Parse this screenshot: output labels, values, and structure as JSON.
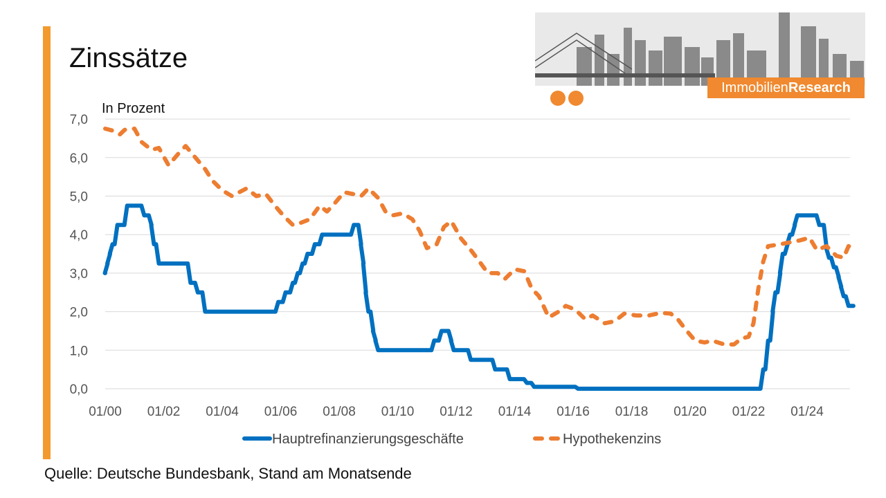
{
  "title": "Zinssätze",
  "unit_label": "In Prozent",
  "source": "Quelle: Deutsche Bundesbank, Stand am Monatsende",
  "brand": {
    "light": "Immobilien",
    "bold": "Research",
    "color": "#f0892f"
  },
  "accent_color": "#f39a2f",
  "chart_data": {
    "type": "line",
    "ylim": [
      0,
      7
    ],
    "yticks": [
      "0,0",
      "1,0",
      "2,0",
      "3,0",
      "4,0",
      "5,0",
      "6,0",
      "7,0"
    ],
    "xticks": [
      "01/00",
      "01/02",
      "01/04",
      "01/06",
      "01/08",
      "01/10",
      "01/12",
      "01/14",
      "01/16",
      "01/18",
      "01/20",
      "01/22",
      "01/24"
    ],
    "grid": true,
    "legend_position": "bottom",
    "series": [
      {
        "name": "Hauptrefinanzierungsgeschäfte",
        "color": "#0070c0",
        "style": "solid",
        "step": true,
        "points": [
          [
            "2000-01",
            3.0
          ],
          [
            "2000-02",
            3.25
          ],
          [
            "2000-03",
            3.5
          ],
          [
            "2000-04",
            3.75
          ],
          [
            "2000-06",
            4.25
          ],
          [
            "2000-10",
            4.75
          ],
          [
            "2001-05",
            4.5
          ],
          [
            "2001-08",
            4.25
          ],
          [
            "2001-09",
            3.75
          ],
          [
            "2001-11",
            3.25
          ],
          [
            "2002-12",
            2.75
          ],
          [
            "2003-03",
            2.5
          ],
          [
            "2003-06",
            2.0
          ],
          [
            "2005-12",
            2.25
          ],
          [
            "2006-03",
            2.5
          ],
          [
            "2006-06",
            2.75
          ],
          [
            "2006-08",
            3.0
          ],
          [
            "2006-10",
            3.25
          ],
          [
            "2006-12",
            3.5
          ],
          [
            "2007-03",
            3.75
          ],
          [
            "2007-06",
            4.0
          ],
          [
            "2008-07",
            4.25
          ],
          [
            "2008-10",
            3.75
          ],
          [
            "2008-11",
            3.25
          ],
          [
            "2008-12",
            2.5
          ],
          [
            "2009-01",
            2.0
          ],
          [
            "2009-03",
            1.5
          ],
          [
            "2009-04",
            1.25
          ],
          [
            "2009-05",
            1.0
          ],
          [
            "2011-04",
            1.25
          ],
          [
            "2011-07",
            1.5
          ],
          [
            "2011-11",
            1.25
          ],
          [
            "2011-12",
            1.0
          ],
          [
            "2012-07",
            0.75
          ],
          [
            "2013-05",
            0.5
          ],
          [
            "2013-11",
            0.25
          ],
          [
            "2014-06",
            0.15
          ],
          [
            "2014-09",
            0.05
          ],
          [
            "2016-03",
            0.0
          ],
          [
            "2022-07",
            0.5
          ],
          [
            "2022-09",
            1.25
          ],
          [
            "2022-11",
            2.0
          ],
          [
            "2022-12",
            2.5
          ],
          [
            "2023-02",
            3.0
          ],
          [
            "2023-03",
            3.5
          ],
          [
            "2023-05",
            3.75
          ],
          [
            "2023-06",
            4.0
          ],
          [
            "2023-08",
            4.25
          ],
          [
            "2023-09",
            4.5
          ],
          [
            "2024-06",
            4.25
          ],
          [
            "2024-09",
            3.65
          ],
          [
            "2024-10",
            3.4
          ],
          [
            "2024-12",
            3.15
          ],
          [
            "2025-02",
            2.9
          ],
          [
            "2025-03",
            2.65
          ],
          [
            "2025-04",
            2.4
          ],
          [
            "2025-06",
            2.15
          ],
          [
            "2025-08",
            2.15
          ]
        ]
      },
      {
        "name": "Hypothekenzins",
        "color": "#ed7d31",
        "style": "dashed",
        "step": false,
        "points": [
          [
            "2000-01",
            6.75
          ],
          [
            "2000-04",
            6.7
          ],
          [
            "2000-07",
            6.6
          ],
          [
            "2000-09",
            6.72
          ],
          [
            "2001-01",
            6.75
          ],
          [
            "2001-04",
            6.4
          ],
          [
            "2001-08",
            6.2
          ],
          [
            "2001-11",
            6.25
          ],
          [
            "2002-03",
            5.8
          ],
          [
            "2002-07",
            6.1
          ],
          [
            "2002-10",
            6.3
          ],
          [
            "2003-02",
            6.0
          ],
          [
            "2003-06",
            5.7
          ],
          [
            "2003-09",
            5.4
          ],
          [
            "2004-01",
            5.15
          ],
          [
            "2004-05",
            5.0
          ],
          [
            "2004-08",
            5.1
          ],
          [
            "2004-11",
            5.2
          ],
          [
            "2005-03",
            5.0
          ],
          [
            "2005-07",
            5.05
          ],
          [
            "2005-10",
            4.8
          ],
          [
            "2006-02",
            4.5
          ],
          [
            "2006-06",
            4.25
          ],
          [
            "2006-09",
            4.3
          ],
          [
            "2007-01",
            4.4
          ],
          [
            "2007-05",
            4.75
          ],
          [
            "2007-08",
            4.6
          ],
          [
            "2007-11",
            4.8
          ],
          [
            "2008-03",
            5.1
          ],
          [
            "2008-07",
            5.05
          ],
          [
            "2008-10",
            5.0
          ],
          [
            "2009-01",
            5.2
          ],
          [
            "2009-05",
            4.95
          ],
          [
            "2009-08",
            4.6
          ],
          [
            "2009-11",
            4.5
          ],
          [
            "2010-03",
            4.55
          ],
          [
            "2010-07",
            4.4
          ],
          [
            "2010-10",
            4.1
          ],
          [
            "2011-01",
            3.65
          ],
          [
            "2011-05",
            3.75
          ],
          [
            "2011-08",
            4.2
          ],
          [
            "2011-11",
            4.35
          ],
          [
            "2012-03",
            3.9
          ],
          [
            "2012-07",
            3.6
          ],
          [
            "2012-10",
            3.35
          ],
          [
            "2013-02",
            3.0
          ],
          [
            "2013-06",
            3.0
          ],
          [
            "2013-09",
            2.85
          ],
          [
            "2014-01",
            3.1
          ],
          [
            "2014-05",
            3.05
          ],
          [
            "2014-08",
            2.6
          ],
          [
            "2014-11",
            2.4
          ],
          [
            "2015-03",
            1.85
          ],
          [
            "2015-07",
            2.0
          ],
          [
            "2015-10",
            2.15
          ],
          [
            "2016-02",
            2.05
          ],
          [
            "2016-06",
            1.8
          ],
          [
            "2016-09",
            1.9
          ],
          [
            "2017-02",
            1.7
          ],
          [
            "2017-06",
            1.75
          ],
          [
            "2017-10",
            1.95
          ],
          [
            "2018-03",
            1.9
          ],
          [
            "2018-08",
            1.9
          ],
          [
            "2019-01",
            1.97
          ],
          [
            "2019-05",
            1.95
          ],
          [
            "2019-08",
            1.8
          ],
          [
            "2019-11",
            1.55
          ],
          [
            "2020-03",
            1.25
          ],
          [
            "2020-07",
            1.2
          ],
          [
            "2020-10",
            1.25
          ],
          [
            "2021-03",
            1.15
          ],
          [
            "2021-07",
            1.15
          ],
          [
            "2021-10",
            1.3
          ],
          [
            "2022-01",
            1.35
          ],
          [
            "2022-03",
            1.7
          ],
          [
            "2022-05",
            2.6
          ],
          [
            "2022-07",
            3.3
          ],
          [
            "2022-09",
            3.7
          ],
          [
            "2023-02",
            3.75
          ],
          [
            "2023-06",
            3.8
          ],
          [
            "2023-10",
            3.85
          ],
          [
            "2024-02",
            3.92
          ],
          [
            "2024-05",
            3.6
          ],
          [
            "2024-09",
            3.7
          ],
          [
            "2025-01",
            3.45
          ],
          [
            "2025-04",
            3.4
          ],
          [
            "2025-06",
            3.7
          ],
          [
            "2025-08",
            3.66
          ]
        ]
      }
    ]
  }
}
